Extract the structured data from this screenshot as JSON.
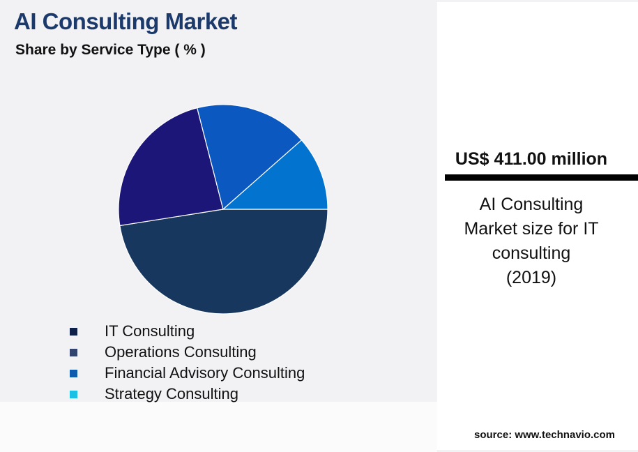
{
  "header": {
    "title": "AI Consulting Market",
    "subtitle": "Share by Service Type ( % )"
  },
  "chart_data": {
    "type": "pie",
    "title": "AI Consulting Market",
    "subtitle": "Share by Service Type ( % )",
    "legend_position": "bottom-left",
    "categories": [
      "IT Consulting",
      "Operations Consulting",
      "Financial Advisory Consulting",
      "Strategy Consulting"
    ],
    "values": [
      47.5,
      23.5,
      17.5,
      11.5
    ],
    "start_angle_deg": 0,
    "direction": "clockwise",
    "slice_colors": [
      "#17375e",
      "#1b1677",
      "#0a58c0",
      "#0274d0"
    ],
    "legend_colors": [
      "#0e1f4a",
      "#31446d",
      "#0e5cad",
      "#1bc1e5"
    ]
  },
  "legend": [
    {
      "label": "IT Consulting",
      "color": "#0e1f4a"
    },
    {
      "label": "Operations Consulting",
      "color": "#31446d"
    },
    {
      "label": "Financial Advisory Consulting",
      "color": "#0e5cad"
    },
    {
      "label": "Strategy Consulting",
      "color": "#1bc1e5"
    }
  ],
  "stat": {
    "value": "US$ 411.00 million",
    "caption_lines": [
      "AI Consulting",
      "Market size for IT",
      "consulting",
      "(2019)"
    ]
  },
  "source": "source: www.technavio.com"
}
